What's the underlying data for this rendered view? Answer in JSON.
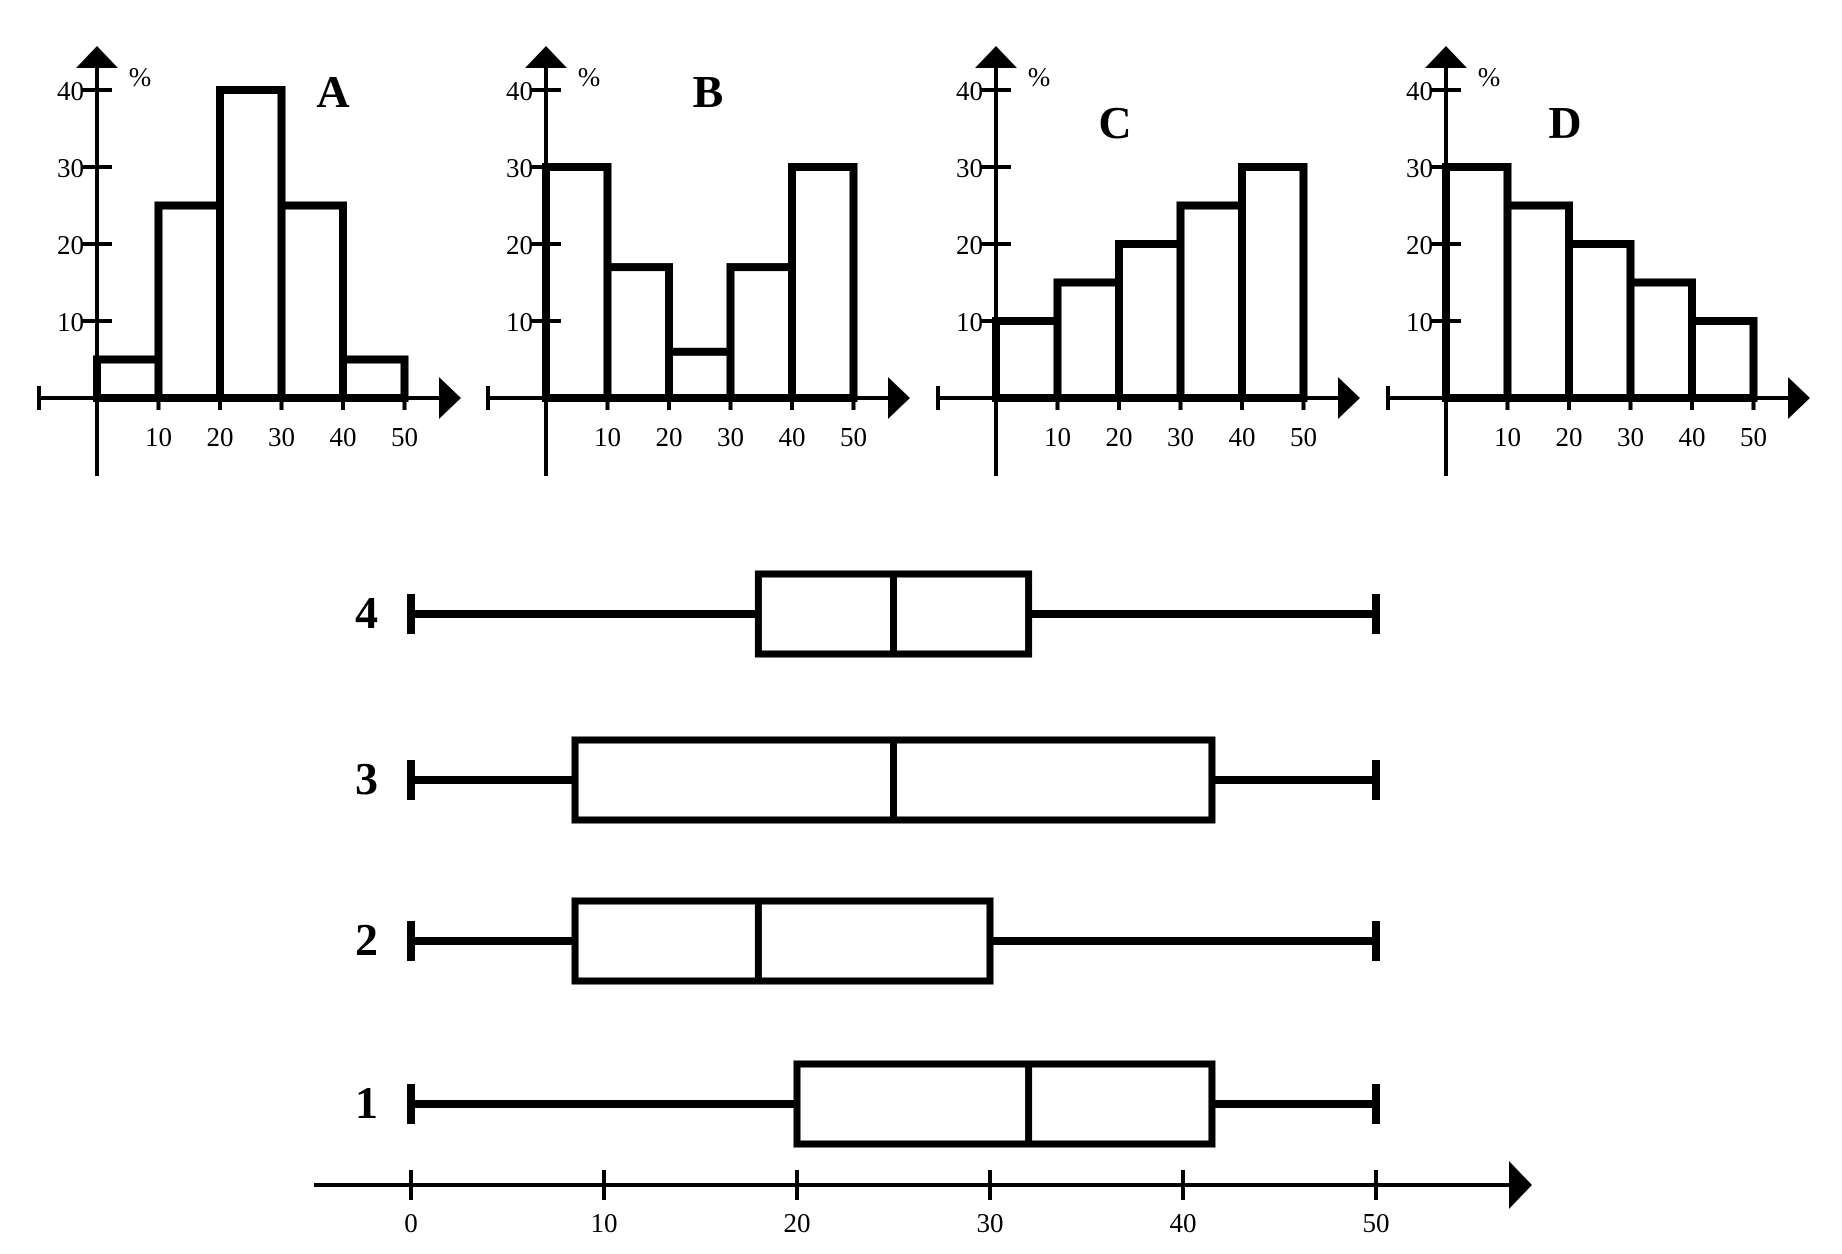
{
  "chart_data": [
    {
      "type": "bar",
      "title": "A",
      "ylabel": "%",
      "bin_edges": [
        0,
        10,
        20,
        30,
        40,
        50
      ],
      "values": [
        5,
        25,
        40,
        25,
        5
      ],
      "xticks": [
        "10",
        "20",
        "30",
        "40",
        "50"
      ],
      "yticks": [
        "10",
        "20",
        "30",
        "40"
      ],
      "xlim": [
        0,
        50
      ],
      "ylim": [
        0,
        40
      ]
    },
    {
      "type": "bar",
      "title": "B",
      "ylabel": "%",
      "bin_edges": [
        0,
        10,
        20,
        30,
        40,
        50
      ],
      "values": [
        30,
        17,
        6,
        17,
        30
      ],
      "xticks": [
        "10",
        "20",
        "30",
        "40",
        "50"
      ],
      "yticks": [
        "10",
        "20",
        "30",
        "40"
      ],
      "xlim": [
        0,
        50
      ],
      "ylim": [
        0,
        40
      ]
    },
    {
      "type": "bar",
      "title": "C",
      "ylabel": "%",
      "bin_edges": [
        0,
        10,
        20,
        30,
        40,
        50
      ],
      "values": [
        10,
        15,
        20,
        25,
        30
      ],
      "xticks": [
        "10",
        "20",
        "30",
        "40",
        "50"
      ],
      "yticks": [
        "10",
        "20",
        "30",
        "40"
      ],
      "xlim": [
        0,
        50
      ],
      "ylim": [
        0,
        40
      ]
    },
    {
      "type": "bar",
      "title": "D",
      "ylabel": "%",
      "bin_edges": [
        0,
        10,
        20,
        30,
        40,
        50
      ],
      "values": [
        30,
        25,
        20,
        15,
        10
      ],
      "xticks": [
        "10",
        "20",
        "30",
        "40",
        "50"
      ],
      "yticks": [
        "10",
        "20",
        "30",
        "40"
      ],
      "xlim": [
        0,
        50
      ],
      "ylim": [
        0,
        40
      ]
    },
    {
      "type": "boxplot",
      "xticks": [
        "0",
        "10",
        "20",
        "30",
        "40",
        "50"
      ],
      "xlim": [
        0,
        50
      ],
      "boxes": [
        {
          "label": "4",
          "min": 0,
          "q1": 18,
          "median": 25,
          "q3": 32,
          "max": 50
        },
        {
          "label": "3",
          "min": 0,
          "q1": 8.5,
          "median": 25,
          "q3": 41.5,
          "max": 50
        },
        {
          "label": "2",
          "min": 0,
          "q1": 8.5,
          "median": 18,
          "q3": 30,
          "max": 50
        },
        {
          "label": "1",
          "min": 0,
          "q1": 20,
          "median": 32,
          "q3": 41.5,
          "max": 50
        }
      ]
    }
  ]
}
